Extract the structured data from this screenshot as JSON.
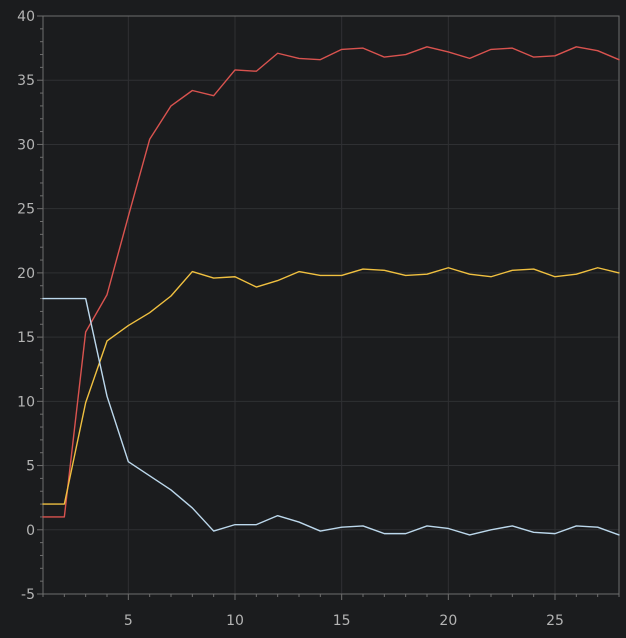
{
  "chart_data": {
    "type": "line",
    "title": "",
    "xlabel": "",
    "ylabel": "",
    "xlim": [
      1,
      28
    ],
    "ylim": [
      -5,
      40
    ],
    "x_ticks": [
      5,
      10,
      15,
      20,
      25
    ],
    "y_ticks": [
      -5,
      0,
      5,
      10,
      15,
      20,
      25,
      30,
      35,
      40
    ],
    "grid": true,
    "legend": "none",
    "colors": {
      "background": "#1b1c1e",
      "grid": "#2f3033",
      "axis": "#6e6e6e",
      "tick_text": "#b4b4b4"
    },
    "x": [
      1,
      2,
      3,
      4,
      5,
      6,
      7,
      8,
      9,
      10,
      11,
      12,
      13,
      14,
      15,
      16,
      17,
      18,
      19,
      20,
      21,
      22,
      23,
      24,
      25,
      26,
      27,
      28
    ],
    "series": [
      {
        "color": "#d9534f",
        "values": [
          1.0,
          1.0,
          15.4,
          18.3,
          24.4,
          30.4,
          33.0,
          34.2,
          33.8,
          35.8,
          35.7,
          37.1,
          36.7,
          36.6,
          37.4,
          37.5,
          36.8,
          37.0,
          37.6,
          37.2,
          36.7,
          37.4,
          37.5,
          36.8,
          36.9,
          37.6,
          37.3,
          36.6
        ]
      },
      {
        "color": "#f0c040",
        "values": [
          2.0,
          2.0,
          9.9,
          14.7,
          15.9,
          16.9,
          18.2,
          20.1,
          19.6,
          19.7,
          18.9,
          19.4,
          20.1,
          19.8,
          19.8,
          20.3,
          20.2,
          19.8,
          19.9,
          20.4,
          19.9,
          19.7,
          20.2,
          20.3,
          19.7,
          19.9,
          20.4,
          20.0
        ]
      },
      {
        "color": "#bcd8ec",
        "values": [
          18.0,
          18.0,
          18.0,
          10.4,
          5.3,
          4.2,
          3.1,
          1.7,
          -0.1,
          0.4,
          0.4,
          1.1,
          0.6,
          -0.1,
          0.2,
          0.3,
          -0.3,
          -0.3,
          0.3,
          0.1,
          -0.4,
          0.0,
          0.3,
          -0.2,
          -0.3,
          0.3,
          0.2,
          -0.4
        ]
      }
    ]
  }
}
